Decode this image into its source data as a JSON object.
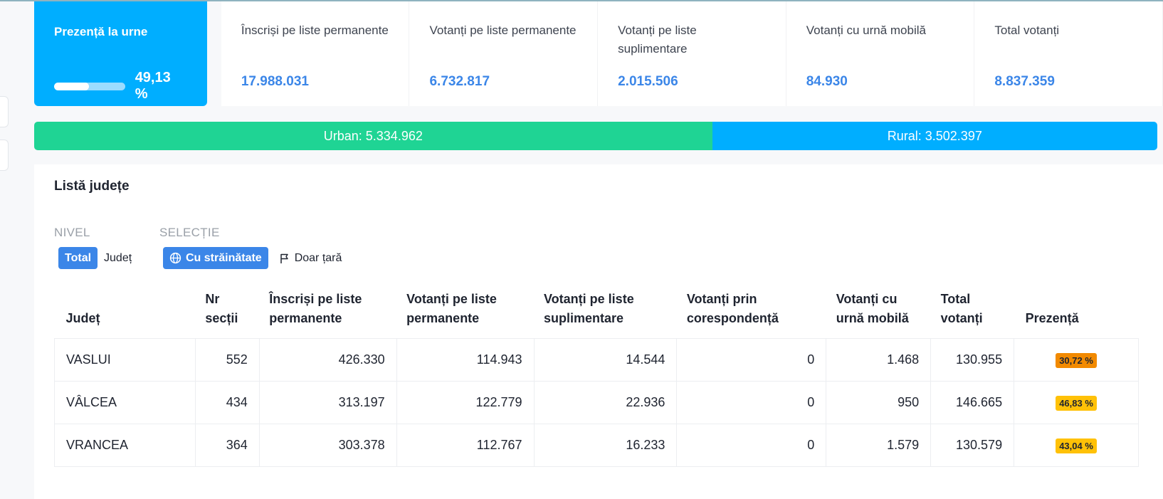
{
  "stats": {
    "turnout": {
      "title": "Prezență la urne",
      "value": "49,13 %",
      "fraction": 0.4913
    },
    "cards": [
      {
        "title": "Înscriși pe liste permanente",
        "value": "17.988.031"
      },
      {
        "title": "Votanți pe liste permanente",
        "value": "6.732.817"
      },
      {
        "title": "Votanți pe liste suplimentare",
        "value": "2.015.506"
      },
      {
        "title": "Votanți cu urnă mobilă",
        "value": "84.930"
      },
      {
        "title": "Total votanți",
        "value": "8.837.359"
      }
    ]
  },
  "urban_rural": {
    "urban_label": "Urban: 5.334.962",
    "rural_label": "Rural: 3.502.397",
    "urban_share": 0.6037,
    "colors": {
      "urban": "#1fd494",
      "rural": "#00aeff"
    }
  },
  "county_list": {
    "title": "Listă județe",
    "level": {
      "label": "NIVEL",
      "options": [
        "Total",
        "Județ"
      ],
      "selected": "Total"
    },
    "selection": {
      "label": "SELECȚIE",
      "options": [
        {
          "label": "Cu străinătate",
          "icon": "globe-icon"
        },
        {
          "label": "Doar țară",
          "icon": "flag-icon"
        }
      ],
      "selected": "Cu străinătate"
    },
    "columns": [
      "Județ",
      "Nr secții",
      "Înscriși pe liste permanente",
      "Votanți pe liste permanente",
      "Votanți pe liste suplimentare",
      "Votanți prin corespondență",
      "Votanți cu urnă mobilă",
      "Total votanți",
      "Prezență"
    ],
    "rows": [
      {
        "county": "VASLUI",
        "sections": "552",
        "registered": "426.330",
        "voters_permanent": "114.943",
        "voters_supplementary": "14.544",
        "voters_mail": "0",
        "voters_mobile": "1.468",
        "total": "130.955",
        "turnout": "30,72 %",
        "turnout_color": "#f28a00"
      },
      {
        "county": "VÂLCEA",
        "sections": "434",
        "registered": "313.197",
        "voters_permanent": "122.779",
        "voters_supplementary": "22.936",
        "voters_mail": "0",
        "voters_mobile": "950",
        "total": "146.665",
        "turnout": "46,83 %",
        "turnout_color": "#ffc107"
      },
      {
        "county": "VRANCEA",
        "sections": "364",
        "registered": "303.378",
        "voters_permanent": "112.767",
        "voters_supplementary": "16.233",
        "voters_mail": "0",
        "voters_mobile": "1.579",
        "total": "130.579",
        "turnout": "43,04 %",
        "turnout_color": "#ffc107"
      }
    ]
  }
}
